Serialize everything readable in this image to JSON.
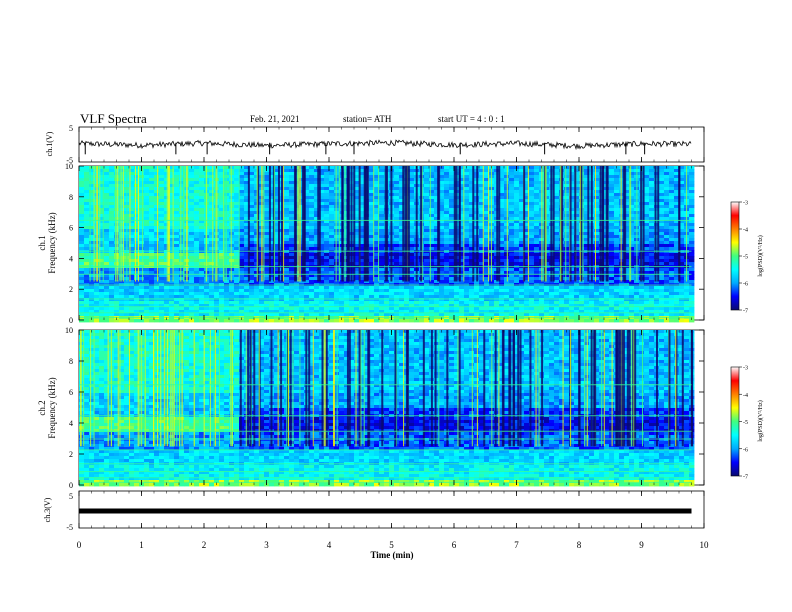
{
  "header": {
    "title": "VLF Spectra",
    "date": "Feb. 21, 2021",
    "station": "station= ATH",
    "start_ut": "start  UT =   4 : 0  : 1"
  },
  "colors": {
    "spectrogram_scale": [
      "#0a0a6e",
      "#0000ff",
      "#00aaff",
      "#00ffff",
      "#40ff80",
      "#ffff00",
      "#ff8000",
      "#ff0000",
      "#ffffff"
    ],
    "trace": "#000000"
  },
  "chart_data": [
    {
      "type": "line",
      "name": "ch1-waveform",
      "ylabel": "ch.1(V)",
      "x": [
        0,
        1,
        2,
        3,
        4,
        5,
        6,
        7,
        8,
        9,
        9.8
      ],
      "y": [
        0.3,
        -0.2,
        0.4,
        -0.3,
        0.2,
        0.5,
        -0.1,
        0.3,
        -0.4,
        0.2,
        0.1
      ],
      "xlim": [
        0,
        10
      ],
      "ylim": [
        -5,
        5
      ],
      "yticks": [
        "5",
        "-5"
      ]
    },
    {
      "type": "heatmap",
      "name": "ch1-spectrogram",
      "ylabel": "Frequency (kHz)",
      "channel_label": "ch.1",
      "xlim": [
        0,
        10
      ],
      "ylim": [
        0,
        10
      ],
      "yticks": [
        "0",
        "2",
        "4",
        "6",
        "8",
        "10"
      ],
      "colorbar": {
        "label": "log(PSD)(V²/Hz)",
        "range": [
          -7,
          -3
        ],
        "ticks": [
          "-3",
          "-4",
          "-5",
          "-6",
          "-7"
        ]
      },
      "data_end_min": 9.8,
      "regime_change_min": 2.5
    },
    {
      "type": "heatmap",
      "name": "ch2-spectrogram",
      "ylabel": "Frequency (kHz)",
      "channel_label": "ch.2",
      "xlim": [
        0,
        10
      ],
      "ylim": [
        0,
        10
      ],
      "yticks": [
        "0",
        "2",
        "4",
        "6",
        "8",
        "10"
      ],
      "colorbar": {
        "label": "log(PSD)(V²/Hz)",
        "range": [
          -7,
          -3
        ],
        "ticks": [
          "-3",
          "-4",
          "-5",
          "-6",
          "-7"
        ]
      },
      "data_end_min": 9.8,
      "regime_change_min": 2.5
    },
    {
      "type": "line",
      "name": "ch3-waveform",
      "ylabel": "ch.3(V)",
      "x": [
        0,
        9.8
      ],
      "y": [
        0,
        0
      ],
      "xlim": [
        0,
        10
      ],
      "ylim": [
        -5,
        5
      ],
      "yticks": [
        "5",
        "-5"
      ]
    }
  ],
  "xaxis": {
    "label": "Time  (min)",
    "ticks": [
      "0",
      "1",
      "2",
      "3",
      "4",
      "5",
      "6",
      "7",
      "8",
      "9",
      "10"
    ]
  }
}
